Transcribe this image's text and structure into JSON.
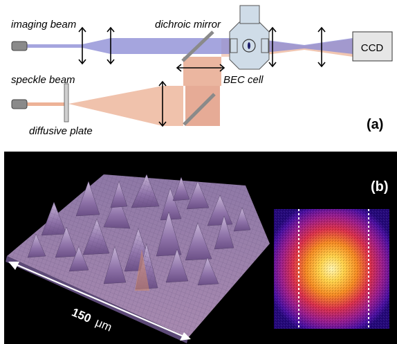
{
  "panel_a": {
    "labels": {
      "imaging_beam": "imaging beam",
      "speckle_beam": "speckle beam",
      "dichroic_mirror": "dichroic mirror",
      "bec_cell": "BEC cell",
      "diffusive_plate": "diffusive plate",
      "ccd": "CCD",
      "panel_tag": "(a)"
    },
    "colors": {
      "imaging_beam": "#8f8fd6",
      "speckle_beam": "#eaa586",
      "overlap": "#dc8d73"
    }
  },
  "panel_b": {
    "panel_tag": "(b)",
    "scale_value": "150",
    "scale_unit": "μm",
    "colors": {
      "background": "#000000",
      "surface": "#a48ab6",
      "heatmap_core": "#fff1a0",
      "heatmap_edge": "#2a0a8c"
    }
  }
}
